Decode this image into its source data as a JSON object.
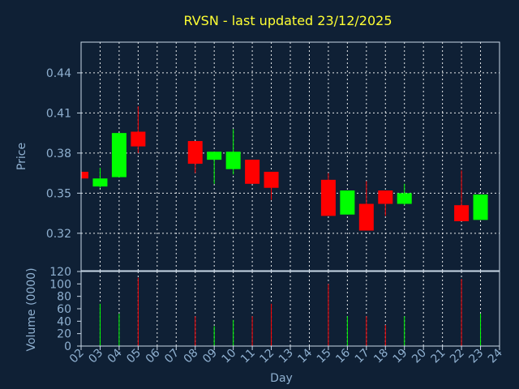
{
  "colors": {
    "background": "#0f2035",
    "title": "#ffff33",
    "axis_text": "#8fb0d0",
    "up": "#00ff00",
    "down": "#ff0000",
    "grid": "#ffffff"
  },
  "chart_data": {
    "type": "candlestick",
    "title": "RVSN - last updated 23/12/2025",
    "price_panel": {
      "ylabel": "Price",
      "ylim": [
        0.292,
        0.463
      ],
      "yticks": [
        "0.32",
        "0.35",
        "0.38",
        "0.41",
        "0.44"
      ],
      "ytick_values": [
        0.32,
        0.35,
        0.38,
        0.41,
        0.44
      ]
    },
    "volume_panel": {
      "ylabel": "Volume (0000)",
      "ylim": [
        0,
        120
      ],
      "yticks": [
        "0",
        "20",
        "40",
        "60",
        "80",
        "100",
        "120"
      ],
      "ytick_values": [
        0,
        20,
        40,
        60,
        80,
        100,
        120
      ]
    },
    "xlabel": "Day",
    "x_ticks": [
      "02",
      "03",
      "04",
      "05",
      "06",
      "07",
      "08",
      "09",
      "10",
      "11",
      "12",
      "13",
      "14",
      "15",
      "16",
      "17",
      "18",
      "19",
      "20",
      "21",
      "22",
      "23",
      "24"
    ],
    "x_range": [
      2,
      24
    ],
    "grid": true,
    "candles": [
      {
        "day": 2,
        "open": 0.366,
        "close": 0.361,
        "high": 0.366,
        "low": 0.361,
        "volume": 0
      },
      {
        "day": 3,
        "open": 0.355,
        "close": 0.361,
        "high": 0.369,
        "low": 0.354,
        "volume": 68
      },
      {
        "day": 4,
        "open": 0.362,
        "close": 0.395,
        "high": 0.395,
        "low": 0.362,
        "volume": 52
      },
      {
        "day": 5,
        "open": 0.396,
        "close": 0.385,
        "high": 0.415,
        "low": 0.38,
        "volume": 110
      },
      {
        "day": 8,
        "open": 0.389,
        "close": 0.372,
        "high": 0.389,
        "low": 0.365,
        "volume": 48
      },
      {
        "day": 9,
        "open": 0.375,
        "close": 0.381,
        "high": 0.381,
        "low": 0.357,
        "volume": 32
      },
      {
        "day": 10,
        "open": 0.368,
        "close": 0.381,
        "high": 0.398,
        "low": 0.364,
        "volume": 42
      },
      {
        "day": 11,
        "open": 0.375,
        "close": 0.357,
        "high": 0.375,
        "low": 0.357,
        "volume": 48
      },
      {
        "day": 12,
        "open": 0.366,
        "close": 0.354,
        "high": 0.366,
        "low": 0.345,
        "volume": 68
      },
      {
        "day": 15,
        "open": 0.36,
        "close": 0.333,
        "high": 0.365,
        "low": 0.333,
        "volume": 100
      },
      {
        "day": 16,
        "open": 0.334,
        "close": 0.352,
        "high": 0.352,
        "low": 0.334,
        "volume": 48
      },
      {
        "day": 17,
        "open": 0.342,
        "close": 0.322,
        "high": 0.359,
        "low": 0.322,
        "volume": 48
      },
      {
        "day": 18,
        "open": 0.352,
        "close": 0.342,
        "high": 0.352,
        "low": 0.333,
        "volume": 34
      },
      {
        "day": 19,
        "open": 0.342,
        "close": 0.35,
        "high": 0.357,
        "low": 0.341,
        "volume": 48
      },
      {
        "day": 22,
        "open": 0.341,
        "close": 0.329,
        "high": 0.367,
        "low": 0.329,
        "volume": 108
      },
      {
        "day": 23,
        "open": 0.33,
        "close": 0.349,
        "high": 0.349,
        "low": 0.33,
        "volume": 52
      }
    ]
  }
}
